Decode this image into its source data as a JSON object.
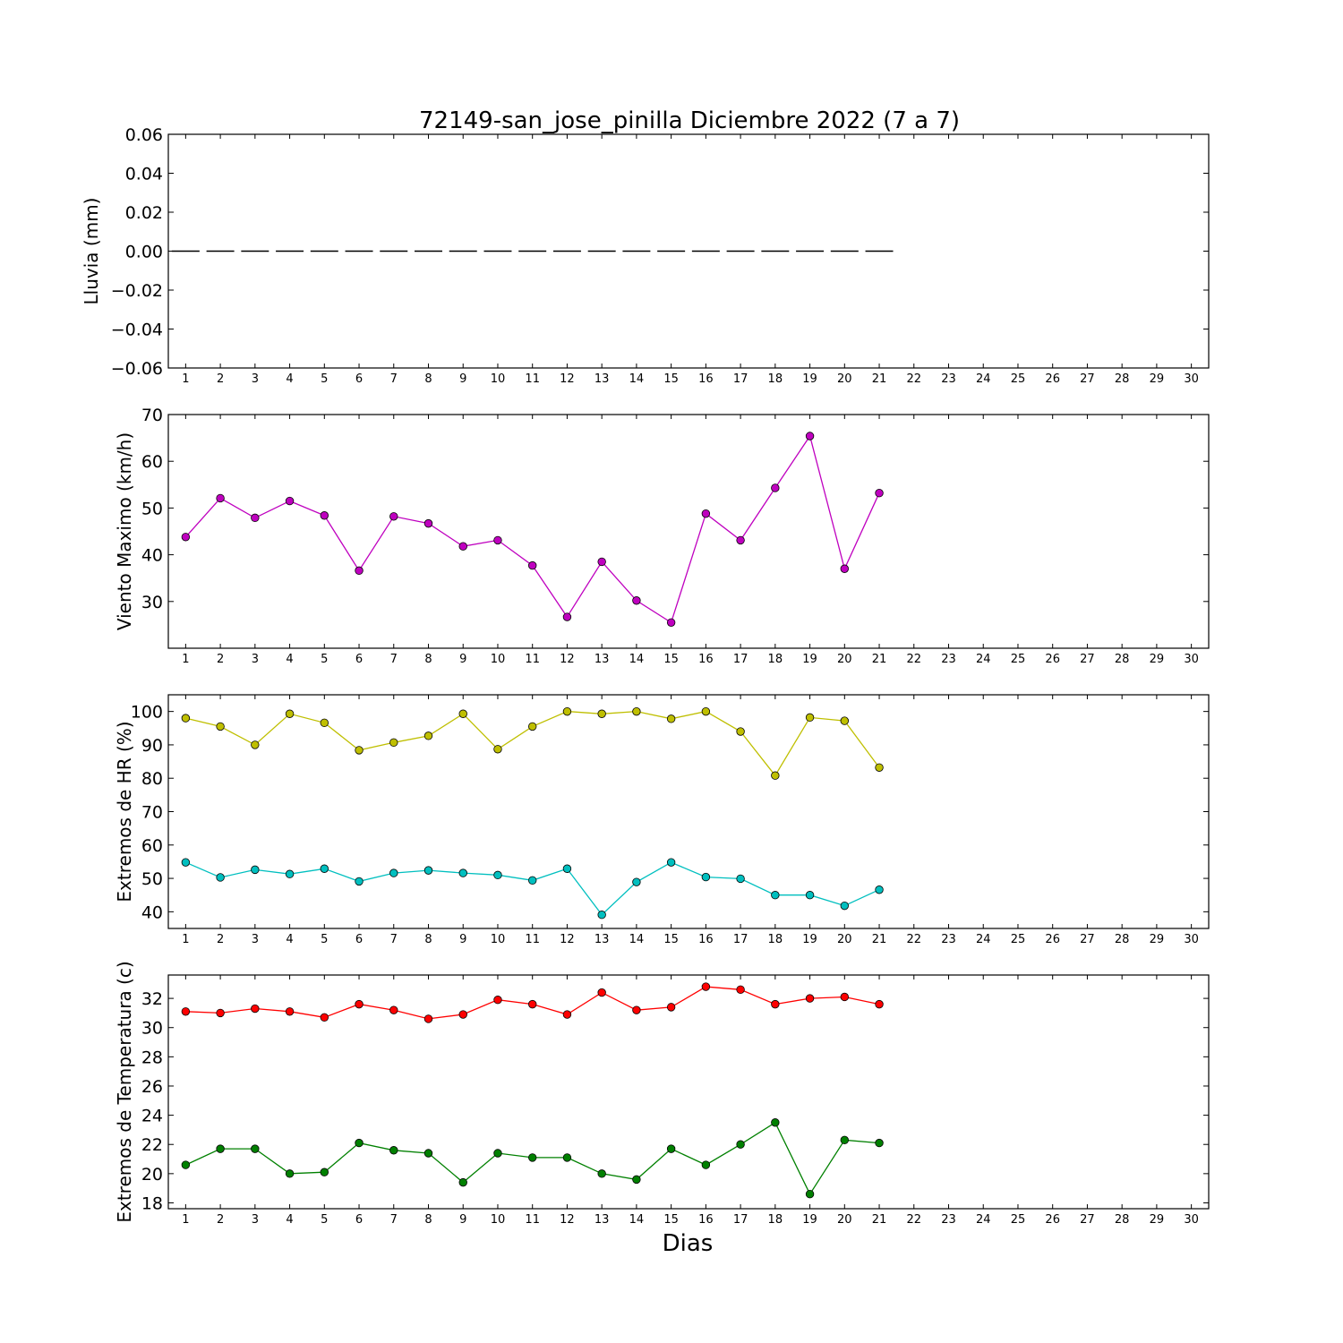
{
  "title": "72149-san_jose_pinilla Diciembre 2022  (7 a 7)",
  "xlabel": "Dias",
  "chart_data": [
    {
      "type": "line",
      "title": "72149-san_jose_pinilla Diciembre 2022  (7 a 7)",
      "xlabel": "",
      "ylabel": "Lluvia (mm)",
      "x": [
        1,
        2,
        3,
        4,
        5,
        6,
        7,
        8,
        9,
        10,
        11,
        12,
        13,
        14,
        15,
        16,
        17,
        18,
        19,
        20,
        21
      ],
      "xticks": [
        1,
        2,
        3,
        4,
        5,
        6,
        7,
        8,
        9,
        10,
        11,
        12,
        13,
        14,
        15,
        16,
        17,
        18,
        19,
        20,
        21,
        22,
        23,
        24,
        25,
        26,
        27,
        28,
        29,
        30
      ],
      "xlim": [
        0.5,
        30.5
      ],
      "ylim": [
        -0.06,
        0.06
      ],
      "yticks": [
        -0.06,
        -0.04,
        -0.02,
        0.0,
        0.02,
        0.04,
        0.06
      ],
      "ytick_labels": [
        "−0.06",
        "−0.04",
        "−0.02",
        "0.00",
        "0.02",
        "0.04",
        "0.06"
      ],
      "grid": false,
      "series": [
        {
          "style": "bars",
          "color": "#000000",
          "values": [
            0,
            0,
            0,
            0,
            0,
            0,
            0,
            0,
            0,
            0,
            0,
            0,
            0,
            0,
            0,
            0,
            0,
            0,
            0,
            0,
            0
          ]
        }
      ]
    },
    {
      "type": "line",
      "xlabel": "",
      "ylabel": "Viento Maximo (km/h)",
      "x": [
        1,
        2,
        3,
        4,
        5,
        6,
        7,
        8,
        9,
        10,
        11,
        12,
        13,
        14,
        15,
        16,
        17,
        18,
        19,
        20,
        21
      ],
      "xticks": [
        1,
        2,
        3,
        4,
        5,
        6,
        7,
        8,
        9,
        10,
        11,
        12,
        13,
        14,
        15,
        16,
        17,
        18,
        19,
        20,
        21,
        22,
        23,
        24,
        25,
        26,
        27,
        28,
        29,
        30
      ],
      "xlim": [
        0.5,
        30.5
      ],
      "ylim": [
        20,
        70
      ],
      "yticks": [
        30,
        40,
        50,
        60,
        70
      ],
      "ytick_labels": [
        "30",
        "40",
        "50",
        "60",
        "70"
      ],
      "grid": false,
      "series": [
        {
          "style": "line-markers",
          "color": "#bf00bf",
          "values": [
            43.8,
            52.1,
            47.9,
            51.5,
            48.4,
            36.6,
            48.2,
            46.7,
            41.8,
            43.1,
            37.7,
            26.7,
            38.5,
            30.2,
            25.5,
            48.8,
            43.1,
            54.3,
            65.4,
            37.0,
            53.2
          ]
        }
      ]
    },
    {
      "type": "line",
      "xlabel": "",
      "ylabel": "Extremos de HR (%)",
      "x": [
        1,
        2,
        3,
        4,
        5,
        6,
        7,
        8,
        9,
        10,
        11,
        12,
        13,
        14,
        15,
        16,
        17,
        18,
        19,
        20,
        21
      ],
      "xticks": [
        1,
        2,
        3,
        4,
        5,
        6,
        7,
        8,
        9,
        10,
        11,
        12,
        13,
        14,
        15,
        16,
        17,
        18,
        19,
        20,
        21,
        22,
        23,
        24,
        25,
        26,
        27,
        28,
        29,
        30
      ],
      "xlim": [
        0.5,
        30.5
      ],
      "ylim": [
        35,
        105
      ],
      "yticks": [
        40,
        50,
        60,
        70,
        80,
        90,
        100
      ],
      "ytick_labels": [
        "40",
        "50",
        "60",
        "70",
        "80",
        "90",
        "100"
      ],
      "grid": false,
      "series": [
        {
          "style": "line-markers",
          "color": "#bfbf00",
          "values": [
            98.0,
            95.5,
            90.0,
            99.3,
            96.6,
            88.4,
            90.7,
            92.7,
            99.3,
            88.7,
            95.5,
            100.0,
            99.3,
            100.0,
            97.8,
            100.0,
            94.0,
            80.8,
            98.2,
            97.2,
            83.2
          ]
        },
        {
          "style": "line-markers",
          "color": "#00bfbf",
          "values": [
            54.8,
            50.3,
            52.6,
            51.3,
            52.9,
            49.1,
            51.6,
            52.4,
            51.6,
            51.0,
            49.4,
            52.9,
            39.1,
            48.9,
            54.8,
            50.4,
            49.9,
            45.0,
            45.0,
            41.8,
            46.6
          ]
        }
      ]
    },
    {
      "type": "line",
      "xlabel": "Dias",
      "ylabel": "Extremos de Temperatura (c)",
      "x": [
        1,
        2,
        3,
        4,
        5,
        6,
        7,
        8,
        9,
        10,
        11,
        12,
        13,
        14,
        15,
        16,
        17,
        18,
        19,
        20,
        21
      ],
      "xticks": [
        1,
        2,
        3,
        4,
        5,
        6,
        7,
        8,
        9,
        10,
        11,
        12,
        13,
        14,
        15,
        16,
        17,
        18,
        19,
        20,
        21,
        22,
        23,
        24,
        25,
        26,
        27,
        28,
        29,
        30
      ],
      "xlim": [
        0.5,
        30.5
      ],
      "ylim": [
        17.6,
        33.6
      ],
      "yticks": [
        18,
        20,
        22,
        24,
        26,
        28,
        30,
        32
      ],
      "ytick_labels": [
        "18",
        "20",
        "22",
        "24",
        "26",
        "28",
        "30",
        "32"
      ],
      "grid": false,
      "series": [
        {
          "style": "line-markers",
          "color": "#ff0000",
          "values": [
            31.1,
            31.0,
            31.3,
            31.1,
            30.7,
            31.6,
            31.2,
            30.6,
            30.9,
            31.9,
            31.6,
            30.9,
            32.4,
            31.2,
            31.4,
            32.8,
            32.6,
            31.6,
            32.0,
            32.1,
            31.6
          ]
        },
        {
          "style": "line-markers",
          "color": "#008000",
          "values": [
            20.6,
            21.7,
            21.7,
            20.0,
            20.1,
            22.1,
            21.6,
            21.4,
            19.4,
            21.4,
            21.1,
            21.1,
            20.0,
            19.6,
            21.7,
            20.6,
            22.0,
            23.5,
            18.6,
            22.3,
            22.1
          ]
        }
      ]
    }
  ]
}
